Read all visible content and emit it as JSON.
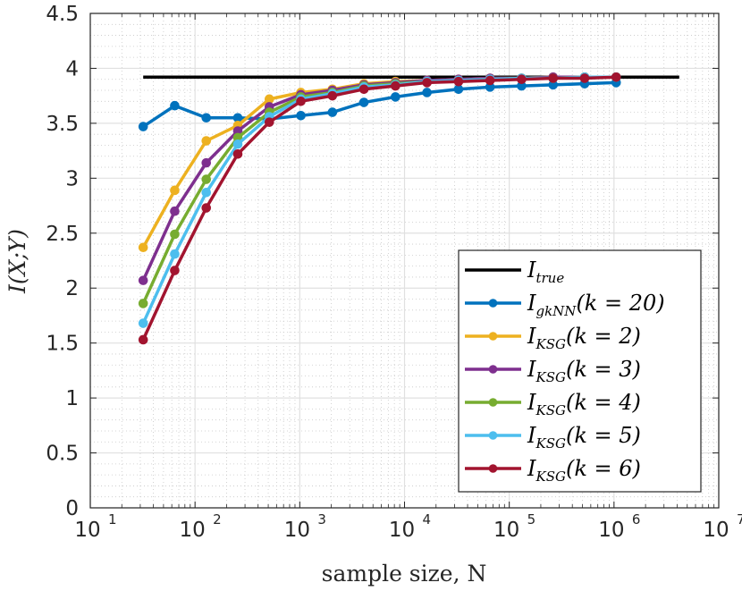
{
  "chart_data": {
    "type": "line",
    "xscale": "log",
    "xlabel": "sample size, N",
    "ylabel": "I(X;Y)",
    "xlim": [
      10,
      10000000
    ],
    "ylim": [
      0,
      4.5
    ],
    "grid": true,
    "minor_grid": true,
    "legend_position": "bottom-right",
    "x_tick_labels": [
      {
        "base": "10",
        "exp": "1"
      },
      {
        "base": "10",
        "exp": "2"
      },
      {
        "base": "10",
        "exp": "3"
      },
      {
        "base": "10",
        "exp": "4"
      },
      {
        "base": "10",
        "exp": "5"
      },
      {
        "base": "10",
        "exp": "6"
      },
      {
        "base": "10",
        "exp": "7"
      }
    ],
    "y_tick_labels": [
      "0",
      "0.5",
      "1",
      "1.5",
      "2",
      "2.5",
      "3",
      "3.5",
      "4",
      "4.5"
    ],
    "series": [
      {
        "name": "I_true",
        "label_main": "I",
        "label_sub": "true",
        "label_rest": "",
        "color": "#000000",
        "markers": false,
        "x": [
          32,
          4194304
        ],
        "y": [
          3.92,
          3.92
        ]
      },
      {
        "name": "I_gkNN(k=20)",
        "label_main": "I",
        "label_sub": "gkNN",
        "label_rest": "(k = 20)",
        "color": "#0072BD",
        "markers": true,
        "x": [
          32,
          64,
          128,
          256,
          512,
          1024,
          2048,
          4096,
          8192,
          16384,
          32768,
          65536,
          131072,
          262144,
          524288,
          1048576
        ],
        "y": [
          3.47,
          3.66,
          3.55,
          3.55,
          3.54,
          3.57,
          3.6,
          3.69,
          3.74,
          3.78,
          3.81,
          3.83,
          3.84,
          3.85,
          3.86,
          3.87
        ]
      },
      {
        "name": "I_KSG(k=2)",
        "label_main": "I",
        "label_sub": "KSG",
        "label_rest": "(k = 2)",
        "color": "#EDB120",
        "markers": true,
        "x": [
          32,
          64,
          128,
          256,
          512,
          1024,
          2048,
          4096,
          8192,
          16384,
          32768,
          65536,
          131072,
          262144,
          524288,
          1048576
        ],
        "y": [
          2.37,
          2.89,
          3.34,
          3.48,
          3.72,
          3.78,
          3.81,
          3.86,
          3.88,
          3.89,
          3.9,
          3.91,
          3.91,
          3.92,
          3.92,
          3.92
        ]
      },
      {
        "name": "I_KSG(k=3)",
        "label_main": "I",
        "label_sub": "KSG",
        "label_rest": "(k = 3)",
        "color": "#7E2F8E",
        "markers": true,
        "x": [
          32,
          64,
          128,
          256,
          512,
          1024,
          2048,
          4096,
          8192,
          16384,
          32768,
          65536,
          131072,
          262144,
          524288,
          1048576
        ],
        "y": [
          2.07,
          2.7,
          3.14,
          3.43,
          3.65,
          3.76,
          3.8,
          3.85,
          3.87,
          3.89,
          3.9,
          3.91,
          3.91,
          3.92,
          3.92,
          3.92
        ]
      },
      {
        "name": "I_KSG(k=4)",
        "label_main": "I",
        "label_sub": "KSG",
        "label_rest": "(k = 4)",
        "color": "#77AC30",
        "markers": true,
        "x": [
          32,
          64,
          128,
          256,
          512,
          1024,
          2048,
          4096,
          8192,
          16384,
          32768,
          65536,
          131072,
          262144,
          524288,
          1048576
        ],
        "y": [
          1.86,
          2.49,
          2.99,
          3.37,
          3.6,
          3.74,
          3.78,
          3.84,
          3.86,
          3.88,
          3.89,
          3.9,
          3.91,
          3.91,
          3.92,
          3.92
        ]
      },
      {
        "name": "I_KSG(k=5)",
        "label_main": "I",
        "label_sub": "KSG",
        "label_rest": "(k = 5)",
        "color": "#4DBEEE",
        "markers": true,
        "x": [
          32,
          64,
          128,
          256,
          512,
          1024,
          2048,
          4096,
          8192,
          16384,
          32768,
          65536,
          131072,
          262144,
          524288,
          1048576
        ],
        "y": [
          1.68,
          2.31,
          2.87,
          3.31,
          3.56,
          3.72,
          3.77,
          3.83,
          3.85,
          3.88,
          3.89,
          3.9,
          3.91,
          3.91,
          3.92,
          3.92
        ]
      },
      {
        "name": "I_KSG(k=6)",
        "label_main": "I",
        "label_sub": "KSG",
        "label_rest": "(k = 6)",
        "color": "#A2142F",
        "markers": true,
        "x": [
          32,
          64,
          128,
          256,
          512,
          1024,
          2048,
          4096,
          8192,
          16384,
          32768,
          65536,
          131072,
          262144,
          524288,
          1048576
        ],
        "y": [
          1.53,
          2.16,
          2.73,
          3.22,
          3.51,
          3.7,
          3.75,
          3.81,
          3.84,
          3.87,
          3.88,
          3.89,
          3.9,
          3.91,
          3.91,
          3.92
        ]
      }
    ]
  }
}
